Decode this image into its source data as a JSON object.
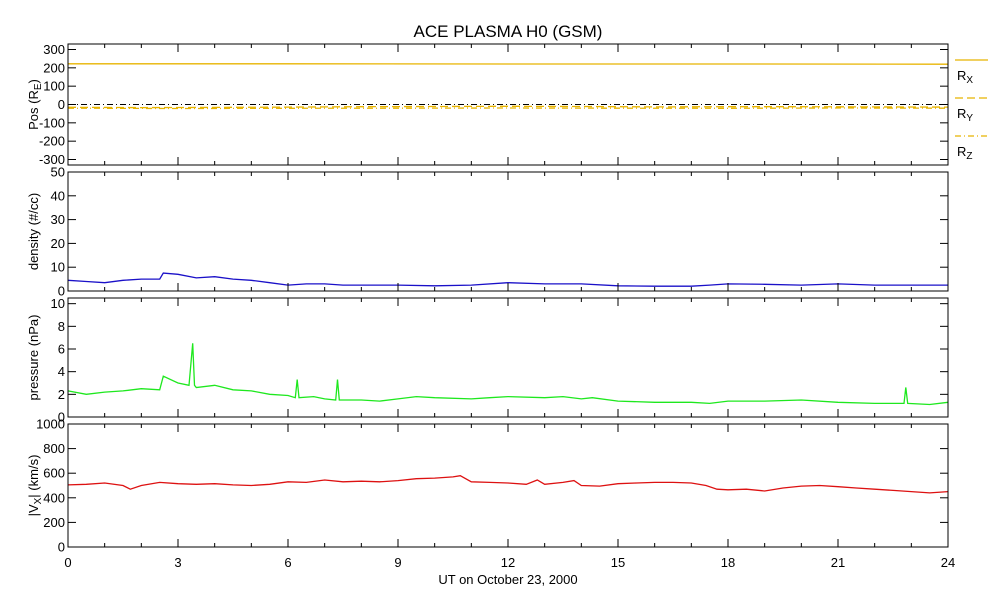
{
  "chart_data": {
    "type": "line",
    "title": "ACE PLASMA H0 (GSM)",
    "xlabel": "UT on October 23, 2000",
    "x_unit": "hours UT",
    "xlim": [
      0,
      24
    ],
    "x_ticks": [
      "0",
      "3",
      "6",
      "9",
      "12",
      "15",
      "18",
      "21",
      "24"
    ],
    "panels": [
      {
        "id": "pos",
        "ylabel": "Pos (R",
        "ylabel_sub": "E",
        "ylabel_tail": ")",
        "ylim": [
          -330,
          330
        ],
        "y_ticks": [
          "300",
          "200",
          "100",
          "0",
          "-100",
          "-200",
          "-300"
        ],
        "y_tick_values": [
          300,
          200,
          100,
          0,
          -100,
          -200,
          -300
        ],
        "legend": [
          {
            "label": "R",
            "sub": "X",
            "style": "solid"
          },
          {
            "label": "R",
            "sub": "Y",
            "style": "dashed"
          },
          {
            "label": "R",
            "sub": "Z",
            "style": "dashdot"
          }
        ],
        "series": [
          {
            "name": "RX",
            "color": "#e8b400",
            "style": "solid",
            "x": [
              0,
              6,
              12,
              18,
              24
            ],
            "y": [
              222,
              222,
              221,
              221,
              220
            ]
          },
          {
            "name": "RY",
            "color": "#e8b400",
            "style": "dashed",
            "x": [
              0,
              2,
              4,
              6,
              8,
              10,
              12,
              14,
              16,
              18,
              20,
              22,
              24
            ],
            "y": [
              -15,
              -17,
              -16,
              -14,
              -12,
              -11,
              -10,
              -11,
              -13,
              -12,
              -12,
              -13,
              -14
            ]
          },
          {
            "name": "RZ",
            "color": "#e8b400",
            "style": "dashdot",
            "x": [
              0,
              3,
              6,
              9,
              12,
              15,
              18,
              21,
              24
            ],
            "y": [
              -20,
              -22,
              -21,
              -20,
              -19,
              -20,
              -21,
              -19,
              -20
            ]
          },
          {
            "name": "zero",
            "color": "#000000",
            "style": "dashdot",
            "x": [
              0,
              24
            ],
            "y": [
              0,
              0
            ]
          }
        ]
      },
      {
        "id": "density",
        "ylabel": "density (#/cc)",
        "ylim": [
          0,
          50
        ],
        "y_ticks": [
          "50",
          "40",
          "30",
          "20",
          "10",
          "0"
        ],
        "y_tick_values": [
          50,
          40,
          30,
          20,
          10,
          0
        ],
        "series": [
          {
            "name": "density",
            "color": "#1a10c8",
            "style": "solid",
            "x": [
              0,
              0.5,
              1,
              1.5,
              2,
              2.5,
              2.6,
              3,
              3.5,
              4,
              4.5,
              5,
              5.5,
              6,
              6.5,
              7,
              7.5,
              8,
              9,
              10,
              11,
              12,
              13,
              14,
              15,
              16,
              17,
              17.5,
              18,
              19,
              20,
              21,
              22,
              23,
              24
            ],
            "y": [
              4.5,
              4,
              3.5,
              4.5,
              5,
              5,
              7.5,
              7,
              5.5,
              6,
              5,
              4.5,
              3.5,
              2.5,
              3,
              3,
              2.5,
              2.5,
              2.5,
              2.2,
              2.5,
              3.5,
              3,
              3,
              2.2,
              2,
              2,
              2.5,
              3,
              2.8,
              2.5,
              3,
              2.5,
              2.5,
              2.5
            ]
          }
        ]
      },
      {
        "id": "pressure",
        "ylabel": "pressure (nPa)",
        "ylim": [
          0,
          10.5
        ],
        "y_ticks": [
          "10",
          "8",
          "6",
          "4",
          "2",
          "0"
        ],
        "y_tick_values": [
          10,
          8,
          6,
          4,
          2,
          0
        ],
        "series": [
          {
            "name": "pressure",
            "color": "#1ee81e",
            "style": "solid",
            "x": [
              0,
              0.5,
              1,
              1.5,
              2,
              2.5,
              2.6,
              3,
              3.3,
              3.4,
              3.45,
              3.5,
              4,
              4.5,
              5,
              5.5,
              6,
              6.2,
              6.25,
              6.3,
              6.7,
              7,
              7.3,
              7.35,
              7.4,
              8,
              8.5,
              9,
              9.5,
              10,
              11,
              11.5,
              12,
              13,
              13.5,
              14,
              14.3,
              15,
              16,
              17,
              17.5,
              18,
              19,
              20,
              21,
              22,
              22.8,
              22.85,
              22.9,
              23.5,
              24
            ],
            "y": [
              2.3,
              2,
              2.2,
              2.3,
              2.5,
              2.4,
              3.6,
              3.0,
              2.8,
              6.5,
              2.8,
              2.6,
              2.8,
              2.4,
              2.3,
              2.0,
              1.9,
              1.7,
              3.3,
              1.7,
              1.8,
              1.6,
              1.5,
              3.3,
              1.5,
              1.5,
              1.4,
              1.6,
              1.8,
              1.7,
              1.6,
              1.7,
              1.8,
              1.7,
              1.8,
              1.6,
              1.7,
              1.4,
              1.3,
              1.3,
              1.2,
              1.4,
              1.4,
              1.5,
              1.3,
              1.2,
              1.2,
              2.6,
              1.2,
              1.1,
              1.3
            ]
          }
        ]
      },
      {
        "id": "vx",
        "ylabel": "|V",
        "ylabel_sub": "X",
        "ylabel_tail": "| (km/s)",
        "ylim": [
          0,
          1000
        ],
        "y_ticks": [
          "1000",
          "800",
          "600",
          "400",
          "200",
          "0"
        ],
        "y_tick_values": [
          1000,
          800,
          600,
          400,
          200,
          0
        ],
        "series": [
          {
            "name": "|VX|",
            "color": "#dd1111",
            "style": "solid",
            "x": [
              0,
              0.5,
              1,
              1.5,
              1.7,
              2,
              2.5,
              3,
              3.5,
              4,
              4.5,
              5,
              5.5,
              6,
              6.5,
              7,
              7.5,
              8,
              8.5,
              9,
              9.5,
              10,
              10.5,
              10.7,
              11,
              11.5,
              12,
              12.5,
              12.8,
              13,
              13.5,
              13.8,
              14,
              14.5,
              15,
              15.5,
              16,
              16.5,
              17,
              17.4,
              17.7,
              18,
              18.5,
              19,
              19.5,
              20,
              20.5,
              21,
              21.5,
              22,
              22.5,
              23,
              23.5,
              24
            ],
            "y": [
              505,
              510,
              520,
              500,
              470,
              500,
              525,
              515,
              510,
              515,
              505,
              500,
              510,
              530,
              525,
              545,
              530,
              535,
              530,
              540,
              555,
              560,
              570,
              580,
              530,
              525,
              520,
              510,
              545,
              510,
              525,
              540,
              500,
              495,
              515,
              520,
              525,
              525,
              520,
              500,
              470,
              465,
              470,
              455,
              480,
              495,
              500,
              490,
              480,
              470,
              460,
              450,
              440,
              450
            ]
          }
        ]
      }
    ]
  }
}
